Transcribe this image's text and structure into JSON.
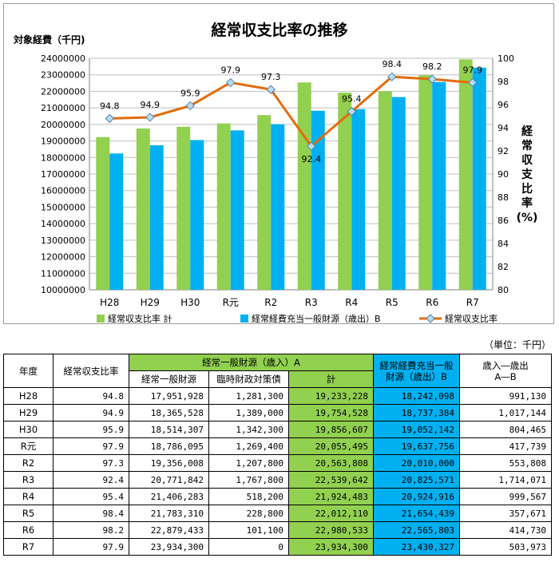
{
  "chart_data": {
    "type": "bar",
    "title": "経常収支比率の推移",
    "left_axis_title": "対象経費（千円)",
    "right_axis_title": "経常収支比率(%)",
    "categories": [
      "H28",
      "H29",
      "H30",
      "R元",
      "R2",
      "R3",
      "R4",
      "R5",
      "R6",
      "R7"
    ],
    "left_ylim": [
      10000000,
      24000000
    ],
    "left_ticks": [
      "10000000",
      "11000000",
      "12000000",
      "13000000",
      "14000000",
      "15000000",
      "16000000",
      "17000000",
      "18000000",
      "19000000",
      "20000000",
      "21000000",
      "22000000",
      "23000000",
      "24000000"
    ],
    "right_ylim": [
      80,
      100
    ],
    "right_ticks": [
      "80",
      "82",
      "84",
      "86",
      "88",
      "90",
      "92",
      "94",
      "96",
      "98",
      "100"
    ],
    "series": [
      {
        "name": "経常収支比率 計",
        "kind": "bar",
        "color": "#92d050",
        "values": [
          19233228,
          19754528,
          19856607,
          20055495,
          20563808,
          22539642,
          21924483,
          22012110,
          22980533,
          23934300
        ]
      },
      {
        "name": "経常経費充当一般財源（歳出）B",
        "kind": "bar",
        "color": "#00b0f0",
        "values": [
          18242098,
          18737384,
          19052142,
          19637756,
          20010000,
          20825571,
          20924916,
          21654439,
          22565803,
          23430327
        ]
      },
      {
        "name": "経常収支比率",
        "kind": "line",
        "color": "#e46c0a",
        "marker_color": "#b7dee8",
        "values": [
          94.8,
          94.9,
          95.9,
          97.9,
          97.3,
          92.4,
          95.4,
          98.4,
          98.2,
          97.9
        ],
        "labels": [
          "94.8",
          "94.9",
          "95.9",
          "97.9",
          "97.3",
          "92.4",
          "95.4",
          "98.4",
          "98.2",
          "97.9"
        ]
      }
    ]
  },
  "table": {
    "unit_note": "（単位：千円）",
    "headers": {
      "year": "年度",
      "ratio": "経常収支比率",
      "groupA": "経常一般財源（歳入）A",
      "general": "経常一般財源",
      "temp": "臨時財政対策債",
      "total": "計",
      "B": "経常経費充当一般財源（歳出）B",
      "diff": "歳入―歳出\nA―B"
    },
    "rows": [
      {
        "year": "H28",
        "ratio": "94.8",
        "general": "17,951,928",
        "temp": "1,281,300",
        "total": "19,233,228",
        "B": "18,242,098",
        "diff": "991,130"
      },
      {
        "year": "H29",
        "ratio": "94.9",
        "general": "18,365,528",
        "temp": "1,389,000",
        "total": "19,754,528",
        "B": "18,737,384",
        "diff": "1,017,144"
      },
      {
        "year": "H30",
        "ratio": "95.9",
        "general": "18,514,307",
        "temp": "1,342,300",
        "total": "19,856,607",
        "B": "19,052,142",
        "diff": "804,465"
      },
      {
        "year": "R元",
        "ratio": "97.9",
        "general": "18,786,095",
        "temp": "1,269,400",
        "total": "20,055,495",
        "B": "19,637,756",
        "diff": "417,739"
      },
      {
        "year": "R2",
        "ratio": "97.3",
        "general": "19,356,008",
        "temp": "1,207,800",
        "total": "20,563,808",
        "B": "20,010,000",
        "diff": "553,808"
      },
      {
        "year": "R3",
        "ratio": "92.4",
        "general": "20,771,842",
        "temp": "1,767,800",
        "total": "22,539,642",
        "B": "20,825,571",
        "diff": "1,714,071"
      },
      {
        "year": "R4",
        "ratio": "95.4",
        "general": "21,406,283",
        "temp": "518,200",
        "total": "21,924,483",
        "B": "20,924,916",
        "diff": "999,567"
      },
      {
        "year": "R5",
        "ratio": "98.4",
        "general": "21,783,310",
        "temp": "228,800",
        "total": "22,012,110",
        "B": "21,654,439",
        "diff": "357,671"
      },
      {
        "year": "R6",
        "ratio": "98.2",
        "general": "22,879,433",
        "temp": "101,100",
        "total": "22,980,533",
        "B": "22,565,803",
        "diff": "414,730"
      },
      {
        "year": "R7",
        "ratio": "97.9",
        "general": "23,934,300",
        "temp": "0",
        "total": "23,934,300",
        "B": "23,430,327",
        "diff": "503,973"
      }
    ]
  }
}
